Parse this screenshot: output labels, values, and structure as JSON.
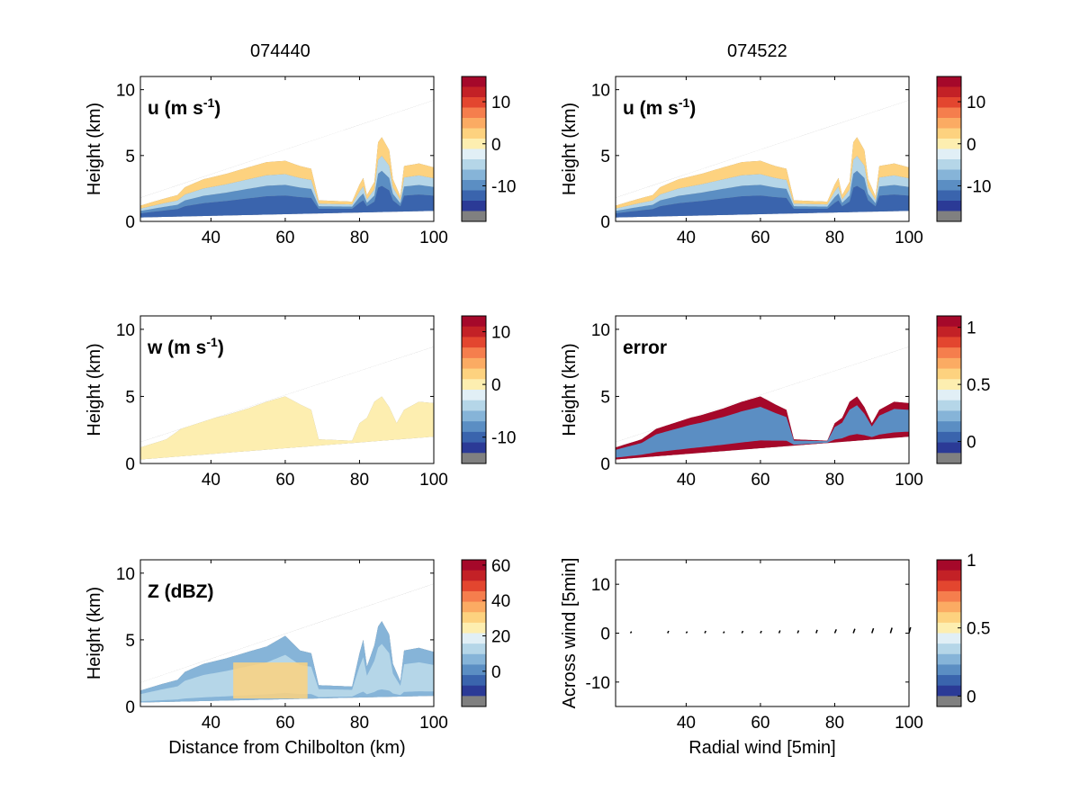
{
  "column_titles": [
    "074440",
    "074522"
  ],
  "colors": {
    "palette": [
      "#2b3a96",
      "#3a64ad",
      "#5b8ec3",
      "#86b4d8",
      "#b5d6e8",
      "#e1eff6",
      "#fdeeb0",
      "#fdd27f",
      "#fbab63",
      "#f57e4d",
      "#e3462f",
      "#c32126",
      "#a5082a"
    ],
    "masked": "#808080",
    "axes": "#000000",
    "quiver": "#000000"
  },
  "chart_data": [
    {
      "id": "u1",
      "type": "heatmap",
      "panel_label": "u (m s",
      "panel_label_sup": "-1",
      "panel_label_close": ")",
      "ylabel": "Height (km)",
      "xlabel": "",
      "xlim": [
        21,
        100
      ],
      "ylim": [
        0,
        11
      ],
      "xticks": [
        40,
        60,
        80,
        100
      ],
      "yticks": [
        0,
        5,
        10
      ],
      "cbar": {
        "ticks": [
          {
            "v": 10,
            "label": "10"
          },
          {
            "v": 0,
            "label": "0"
          },
          {
            "v": -10,
            "label": "-10"
          }
        ],
        "range": [
          -16,
          16
        ]
      },
      "beam_top": [
        [
          21,
          1.8
        ],
        [
          100,
          9.2
        ]
      ],
      "beam_bottom": [
        [
          21,
          0.3
        ],
        [
          100,
          0.8
        ]
      ],
      "echo_top": [
        [
          21,
          1.2
        ],
        [
          27,
          1.7
        ],
        [
          31,
          2.0
        ],
        [
          33,
          2.6
        ],
        [
          38,
          3.2
        ],
        [
          44,
          3.6
        ],
        [
          50,
          4.1
        ],
        [
          55,
          4.5
        ],
        [
          60,
          4.6
        ],
        [
          64,
          4.2
        ],
        [
          67,
          4.0
        ],
        [
          69,
          1.6
        ],
        [
          78,
          1.5
        ],
        [
          80,
          2.8
        ],
        [
          81,
          3.3
        ],
        [
          82,
          2.0
        ],
        [
          84,
          3.0
        ],
        [
          85,
          6.0
        ],
        [
          86,
          6.4
        ],
        [
          88,
          5.4
        ],
        [
          89,
          3.2
        ],
        [
          91,
          1.9
        ],
        [
          92,
          4.2
        ],
        [
          96,
          4.4
        ],
        [
          100,
          4.1
        ]
      ],
      "layers": [
        {
          "band": [
            0.0,
            0.35
          ],
          "value": -13
        },
        {
          "band": [
            0.35,
            0.55
          ],
          "value": -9
        },
        {
          "band": [
            0.55,
            0.75
          ],
          "value": -5
        },
        {
          "band": [
            0.75,
            1.0
          ],
          "value": 3
        }
      ]
    },
    {
      "id": "u2",
      "type": "heatmap",
      "panel_label": "u (m s",
      "panel_label_sup": "-1",
      "panel_label_close": ")",
      "ylabel": "Height (km)",
      "xlabel": "",
      "xlim": [
        21,
        100
      ],
      "ylim": [
        0,
        11
      ],
      "xticks": [
        40,
        60,
        80,
        100
      ],
      "yticks": [
        0,
        5,
        10
      ],
      "cbar": {
        "ticks": [
          {
            "v": 10,
            "label": "10"
          },
          {
            "v": 0,
            "label": "0"
          },
          {
            "v": -10,
            "label": "-10"
          }
        ],
        "range": [
          -16,
          16
        ]
      },
      "beam_top": [
        [
          21,
          1.8
        ],
        [
          100,
          9.2
        ]
      ],
      "beam_bottom": [
        [
          21,
          0.3
        ],
        [
          100,
          0.8
        ]
      ],
      "echo_top": [
        [
          21,
          1.2
        ],
        [
          27,
          1.7
        ],
        [
          31,
          2.0
        ],
        [
          33,
          2.6
        ],
        [
          38,
          3.2
        ],
        [
          44,
          3.6
        ],
        [
          50,
          4.1
        ],
        [
          55,
          4.5
        ],
        [
          60,
          4.6
        ],
        [
          64,
          4.2
        ],
        [
          67,
          4.0
        ],
        [
          69,
          1.6
        ],
        [
          78,
          1.5
        ],
        [
          80,
          2.8
        ],
        [
          81,
          3.3
        ],
        [
          82,
          2.0
        ],
        [
          84,
          3.0
        ],
        [
          85,
          6.0
        ],
        [
          86,
          6.4
        ],
        [
          88,
          5.4
        ],
        [
          89,
          3.2
        ],
        [
          91,
          1.9
        ],
        [
          92,
          4.2
        ],
        [
          96,
          4.4
        ],
        [
          100,
          4.1
        ]
      ],
      "layers": [
        {
          "band": [
            0.0,
            0.35
          ],
          "value": -13
        },
        {
          "band": [
            0.35,
            0.55
          ],
          "value": -9
        },
        {
          "band": [
            0.55,
            0.75
          ],
          "value": -5
        },
        {
          "band": [
            0.75,
            1.0
          ],
          "value": 3
        }
      ]
    },
    {
      "id": "w",
      "type": "heatmap",
      "panel_label": "w (m s",
      "panel_label_sup": "-1",
      "panel_label_close": ")",
      "ylabel": "Height (km)",
      "xlabel": "",
      "xlim": [
        21,
        100
      ],
      "ylim": [
        0,
        11
      ],
      "xticks": [
        40,
        60,
        80,
        100
      ],
      "yticks": [
        0,
        5,
        10
      ],
      "cbar": {
        "ticks": [
          {
            "v": 10,
            "label": "10"
          },
          {
            "v": 0,
            "label": "0"
          },
          {
            "v": -10,
            "label": "-10"
          }
        ],
        "range": [
          -13,
          13
        ]
      },
      "beam_top": [
        [
          21,
          1.6
        ],
        [
          100,
          8.7
        ]
      ],
      "beam_bottom": [
        [
          21,
          0.3
        ],
        [
          100,
          2.0
        ]
      ],
      "echo_top": [
        [
          21,
          1.2
        ],
        [
          28,
          1.8
        ],
        [
          32,
          2.6
        ],
        [
          38,
          3.2
        ],
        [
          44,
          3.6
        ],
        [
          50,
          4.1
        ],
        [
          55,
          4.6
        ],
        [
          60,
          5.0
        ],
        [
          64,
          4.4
        ],
        [
          67,
          4.0
        ],
        [
          69,
          1.8
        ],
        [
          78,
          1.7
        ],
        [
          80,
          3.0
        ],
        [
          82,
          3.4
        ],
        [
          84,
          4.6
        ],
        [
          86,
          5.0
        ],
        [
          88,
          4.2
        ],
        [
          90,
          3.0
        ],
        [
          92,
          4.0
        ],
        [
          96,
          4.6
        ],
        [
          100,
          4.5
        ]
      ],
      "layers": [
        {
          "band": [
            0.0,
            1.0
          ],
          "value": 0
        }
      ]
    },
    {
      "id": "err",
      "type": "heatmap",
      "panel_label": "error",
      "panel_label_sup": "",
      "panel_label_close": "",
      "ylabel": "Height (km)",
      "xlabel": "",
      "xlim": [
        21,
        100
      ],
      "ylim": [
        0,
        11
      ],
      "xticks": [
        40,
        60,
        80,
        100
      ],
      "yticks": [
        0,
        5,
        10
      ],
      "cbar": {
        "ticks": [
          {
            "v": 1,
            "label": "1"
          },
          {
            "v": 0.5,
            "label": "0.5"
          },
          {
            "v": 0,
            "label": "0"
          }
        ],
        "range": [
          -0.1,
          1.1
        ]
      },
      "beam_top": [
        [
          21,
          1.6
        ],
        [
          100,
          8.7
        ]
      ],
      "beam_bottom": [
        [
          21,
          0.3
        ],
        [
          100,
          2.0
        ]
      ],
      "echo_top": [
        [
          21,
          1.2
        ],
        [
          28,
          1.8
        ],
        [
          32,
          2.6
        ],
        [
          38,
          3.2
        ],
        [
          44,
          3.6
        ],
        [
          50,
          4.1
        ],
        [
          55,
          4.6
        ],
        [
          60,
          5.0
        ],
        [
          64,
          4.4
        ],
        [
          67,
          4.0
        ],
        [
          69,
          1.8
        ],
        [
          78,
          1.7
        ],
        [
          80,
          3.0
        ],
        [
          82,
          3.4
        ],
        [
          84,
          4.6
        ],
        [
          86,
          5.0
        ],
        [
          88,
          4.2
        ],
        [
          90,
          3.0
        ],
        [
          92,
          4.0
        ],
        [
          96,
          4.6
        ],
        [
          100,
          4.5
        ]
      ],
      "layers": [
        {
          "band": [
            0.0,
            1.0
          ],
          "value": 1.05
        },
        {
          "band": [
            0.15,
            0.8
          ],
          "value": 0.15
        }
      ]
    },
    {
      "id": "z",
      "type": "heatmap",
      "panel_label": "Z (dBZ)",
      "panel_label_sup": "",
      "panel_label_close": "",
      "ylabel": "Height (km)",
      "xlabel": "Distance from Chilbolton (km)",
      "xlim": [
        21,
        100
      ],
      "ylim": [
        0,
        11
      ],
      "xticks": [
        40,
        60,
        80,
        100
      ],
      "yticks": [
        0,
        5,
        10
      ],
      "cbar": {
        "ticks": [
          {
            "v": 60,
            "label": "60"
          },
          {
            "v": 40,
            "label": "40"
          },
          {
            "v": 20,
            "label": "20"
          },
          {
            "v": 0,
            "label": "0"
          }
        ],
        "range": [
          -14,
          63
        ]
      },
      "beam_top": [
        [
          21,
          1.8
        ],
        [
          100,
          9.2
        ]
      ],
      "beam_bottom": [
        [
          21,
          0.3
        ],
        [
          100,
          0.8
        ]
      ],
      "echo_top": [
        [
          21,
          1.2
        ],
        [
          27,
          1.7
        ],
        [
          31,
          2.0
        ],
        [
          33,
          2.6
        ],
        [
          38,
          3.2
        ],
        [
          44,
          3.6
        ],
        [
          50,
          4.1
        ],
        [
          55,
          4.5
        ],
        [
          60,
          5.3
        ],
        [
          64,
          4.2
        ],
        [
          67,
          4.0
        ],
        [
          69,
          1.6
        ],
        [
          78,
          1.5
        ],
        [
          80,
          4.0
        ],
        [
          81,
          5.0
        ],
        [
          82,
          3.0
        ],
        [
          84,
          4.6
        ],
        [
          85,
          6.0
        ],
        [
          86,
          6.4
        ],
        [
          88,
          5.4
        ],
        [
          89,
          3.2
        ],
        [
          91,
          1.9
        ],
        [
          92,
          4.2
        ],
        [
          96,
          4.4
        ],
        [
          100,
          4.1
        ]
      ],
      "layers": [
        {
          "band": [
            0.0,
            1.0
          ],
          "value": 5
        },
        {
          "band": [
            0.1,
            0.7
          ],
          "value": 15
        }
      ],
      "core": {
        "x": [
          46,
          66
        ],
        "ybottom": 0.6,
        "ytop": 3.3,
        "value": 30
      }
    },
    {
      "id": "quiver",
      "type": "scatter",
      "panel_label": "",
      "panel_label_sup": "",
      "panel_label_close": "",
      "ylabel": "Across wind [5min]",
      "xlabel": "Radial wind [5min]",
      "xlim": [
        21,
        100
      ],
      "ylim": [
        -15,
        15
      ],
      "xticks": [
        40,
        60,
        80,
        100
      ],
      "yticks": [
        -10,
        0,
        10
      ],
      "cbar": {
        "ticks": [
          {
            "v": 1,
            "label": "1"
          },
          {
            "v": 0.5,
            "label": "0.5"
          },
          {
            "v": 0,
            "label": "0"
          }
        ],
        "range": [
          0,
          1
        ]
      },
      "arrows": [
        {
          "x": 25,
          "y": 0,
          "dx": 0.2,
          "dy": 0.3
        },
        {
          "x": 35,
          "y": 0,
          "dx": 0.2,
          "dy": 0.4
        },
        {
          "x": 40,
          "y": 0,
          "dx": 0.2,
          "dy": 0.3
        },
        {
          "x": 45,
          "y": 0,
          "dx": 0.2,
          "dy": 0.4
        },
        {
          "x": 50,
          "y": 0,
          "dx": 0.2,
          "dy": 0.3
        },
        {
          "x": 55,
          "y": 0,
          "dx": 0.2,
          "dy": 0.4
        },
        {
          "x": 60,
          "y": 0,
          "dx": 0.2,
          "dy": 0.4
        },
        {
          "x": 65,
          "y": 0,
          "dx": 0.2,
          "dy": 0.5
        },
        {
          "x": 70,
          "y": 0,
          "dx": 0.2,
          "dy": 0.5
        },
        {
          "x": 75,
          "y": 0,
          "dx": 0.2,
          "dy": 0.6
        },
        {
          "x": 80,
          "y": 0,
          "dx": 0.3,
          "dy": 0.7
        },
        {
          "x": 85,
          "y": 0,
          "dx": 0.3,
          "dy": 0.8
        },
        {
          "x": 90,
          "y": 0,
          "dx": 0.3,
          "dy": 0.9
        },
        {
          "x": 95,
          "y": 0,
          "dx": 0.3,
          "dy": 1.0
        },
        {
          "x": 100,
          "y": 0,
          "dx": 0.3,
          "dy": 1.1
        }
      ]
    }
  ]
}
